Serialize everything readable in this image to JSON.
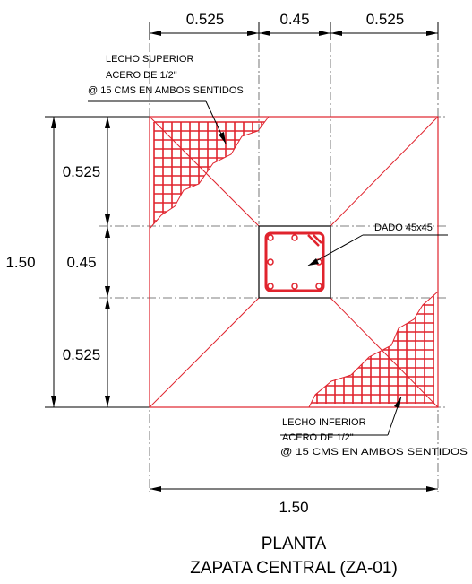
{
  "dimensions": {
    "top_left": "0.525",
    "top_center": "0.45",
    "top_right": "0.525",
    "left_total": "1.50",
    "left_top": "0.525",
    "left_center": "0.45",
    "left_bottom": "0.525",
    "bottom_total": "1.50"
  },
  "notes": {
    "top_layer": {
      "line1": "LECHO SUPERIOR",
      "line2": "ACERO DE 1/2\"",
      "line3": "@ 15 CMS EN AMBOS SENTIDOS"
    },
    "pedestal": "DADO 45x45",
    "bottom_layer": {
      "line1": "LECHO INFERIOR",
      "line2": "ACERO DE 1/2\"",
      "line3": "@ 15 CMS EN AMBOS SENTIDOS"
    }
  },
  "title": {
    "line1": "PLANTA",
    "line2": "ZAPATA CENTRAL (ZA-01)"
  },
  "colors": {
    "footing": "#e0232d",
    "lines": "#000000"
  }
}
